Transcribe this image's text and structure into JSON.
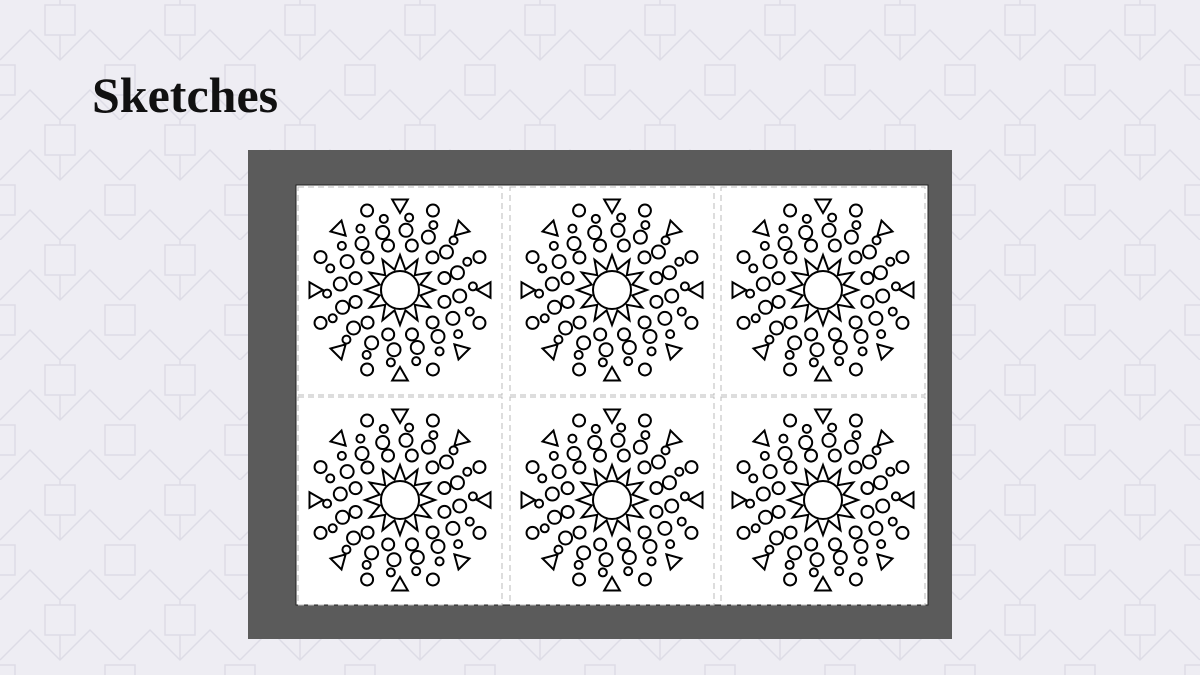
{
  "title": "Sketches"
}
